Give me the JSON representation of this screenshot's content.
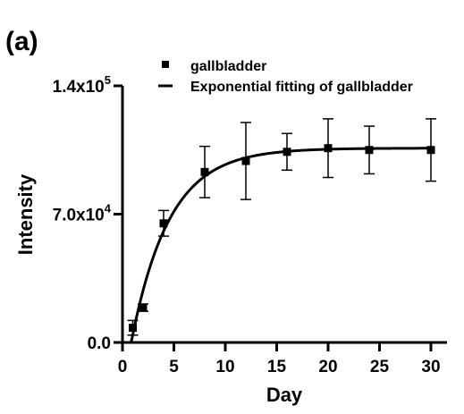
{
  "chart_data": {
    "type": "scatter",
    "panel_label": "(a)",
    "xlabel": "Day",
    "ylabel": "Intensity",
    "xlim": [
      0,
      31
    ],
    "ylim": [
      0,
      140000
    ],
    "x_ticks": [
      0,
      5,
      10,
      15,
      20,
      25,
      30
    ],
    "y_ticks": [
      {
        "value": 0,
        "base": "0.0",
        "exp": ""
      },
      {
        "value": 70000,
        "base": "7.0x10",
        "exp": "4"
      },
      {
        "value": 140000,
        "base": "1.4x10",
        "exp": "5"
      }
    ],
    "legend": {
      "position": "top-right"
    },
    "series": [
      {
        "name": "gallbladder",
        "kind": "points",
        "marker": "square",
        "x": [
          1,
          2,
          4,
          8,
          12,
          16,
          20,
          24,
          30
        ],
        "y": [
          8000,
          19000,
          65000,
          93000,
          99000,
          104000,
          106000,
          105000,
          105000
        ],
        "err": [
          4000,
          2000,
          7000,
          14000,
          21000,
          10000,
          16000,
          13000,
          17000
        ]
      },
      {
        "name": "Exponential fitting of gallbladder",
        "kind": "line",
        "model": "y = A*(1 - exp(-k*(x - x0)))",
        "params": {
          "A": 106000,
          "k": 0.27,
          "x0": 0.85
        }
      }
    ]
  }
}
